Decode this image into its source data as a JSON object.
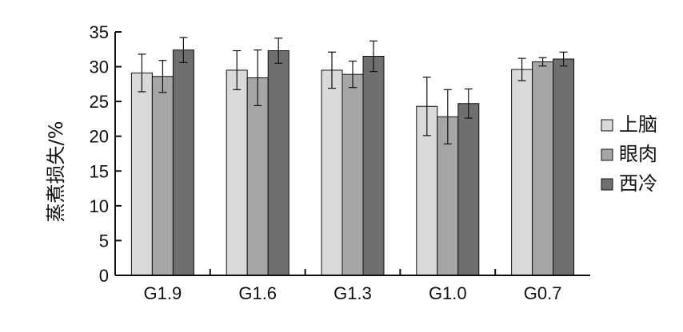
{
  "chart_data": {
    "type": "bar",
    "title": "",
    "xlabel": "",
    "ylabel": "蒸煮损失/%",
    "ylim": [
      0,
      35
    ],
    "yticks": [
      0,
      5,
      10,
      15,
      20,
      25,
      30,
      35
    ],
    "grid": false,
    "legend_position": "right",
    "categories": [
      "G1.9",
      "G1.6",
      "G1.3",
      "G1.0",
      "G0.7"
    ],
    "series": [
      {
        "name": "上脑",
        "color": "#d9d9d9",
        "values": [
          29.1,
          29.5,
          29.5,
          24.3,
          29.6
        ],
        "errors": [
          2.7,
          2.8,
          2.6,
          4.2,
          1.6
        ]
      },
      {
        "name": "眼肉",
        "color": "#a6a6a6",
        "values": [
          28.6,
          28.4,
          28.9,
          22.8,
          30.7
        ],
        "errors": [
          2.3,
          4.0,
          1.9,
          3.9,
          0.6
        ]
      },
      {
        "name": "西冷",
        "color": "#6f6f6f",
        "values": [
          32.4,
          32.3,
          31.5,
          24.7,
          31.1
        ],
        "errors": [
          1.8,
          1.8,
          2.2,
          2.1,
          1.0
        ]
      }
    ]
  }
}
